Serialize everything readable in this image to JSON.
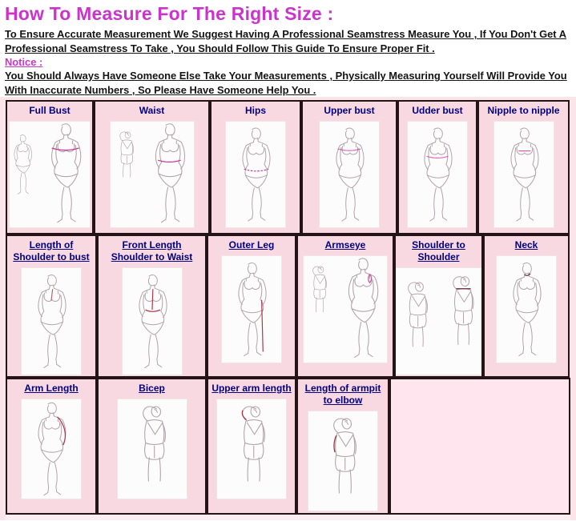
{
  "page": {
    "title": "How To Measure For The Right Size :",
    "intro": "To Ensure Accurate Measurement We Suggest Having A Professional Seamstress Measure You , If You Don't Get A Professional Seamstress To Take , You Should Follow This Guide To Ensure Proper Fit .",
    "notice_label": "Notice :",
    "notice_text": "You Should Always Have Someone Else Take Your Measurements , Physically Measuring Yourself Will Provide You With Inaccurate Numbers , So Please Have Someone Help You ."
  },
  "colors": {
    "title_magenta": "#cc33cc",
    "label_navy": "#000080",
    "cell_pink": "#f8d8e1",
    "section_pink": "#fce4eb",
    "empty_cell_pink": "#ffe6ee",
    "border_dark": "#241418",
    "measure_line_magenta": "#cc3399",
    "measure_line_red": "#a93848"
  },
  "table": {
    "rows": [
      {
        "cells": [
          {
            "label": "Full Bust",
            "figure": "pair-front",
            "mark": "bust",
            "link": false
          },
          {
            "label": "Waist",
            "figure": "pair-back",
            "mark": "waist",
            "link": false
          },
          {
            "label": "Hips",
            "figure": "front",
            "mark": "hips",
            "link": false
          },
          {
            "label": "Upper bust",
            "figure": "front",
            "mark": "upper-bust",
            "link": false
          },
          {
            "label": "Udder bust",
            "figure": "front",
            "mark": "under-bust",
            "link": false
          },
          {
            "label": "Nipple to nipple",
            "figure": "front",
            "mark": "nipple",
            "link": false
          }
        ]
      },
      {
        "cells": [
          {
            "label": "Length of Shoulder to bust",
            "figure": "front",
            "mark": "shoulder-bust",
            "link": true
          },
          {
            "label": "Front Length Shoulder to Waist",
            "figure": "front",
            "mark": "shoulder-waist",
            "link": true
          },
          {
            "label": "Outer Leg",
            "figure": "front",
            "mark": "outer-leg",
            "link": true
          },
          {
            "label": "Armseye",
            "figure": "pair-back",
            "mark": "armseye",
            "link": true
          },
          {
            "label": "Shoulder to Shoulder",
            "figure": "two-backs",
            "mark": "shoulder-shoulder",
            "link": true
          },
          {
            "label": "Neck",
            "figure": "front",
            "mark": "neck",
            "link": true
          }
        ]
      },
      {
        "cells": [
          {
            "label": "Arm Length",
            "figure": "front",
            "mark": "arm-length",
            "link": true
          },
          {
            "label": "Bicep",
            "figure": "back",
            "mark": null,
            "link": true
          },
          {
            "label": "Upper arm length",
            "figure": "back",
            "mark": "upper-arm",
            "link": true
          },
          {
            "label": "Length of armpit to elbow",
            "figure": "back",
            "mark": "armpit-elbow",
            "link": true
          },
          {
            "label": null,
            "empty": true
          }
        ]
      }
    ]
  }
}
